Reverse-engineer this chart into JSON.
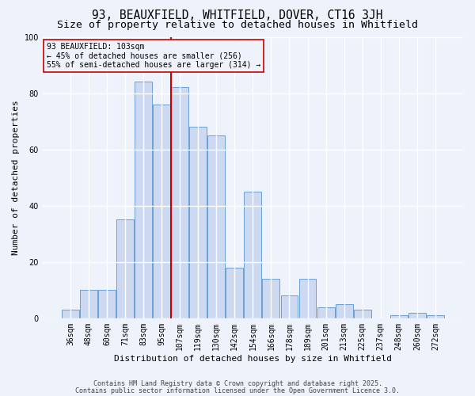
{
  "title1": "93, BEAUXFIELD, WHITFIELD, DOVER, CT16 3JH",
  "title2": "Size of property relative to detached houses in Whitfield",
  "xlabel": "Distribution of detached houses by size in Whitfield",
  "ylabel": "Number of detached properties",
  "bar_labels": [
    "36sqm",
    "48sqm",
    "60sqm",
    "71sqm",
    "83sqm",
    "95sqm",
    "107sqm",
    "119sqm",
    "130sqm",
    "142sqm",
    "154sqm",
    "166sqm",
    "178sqm",
    "189sqm",
    "201sqm",
    "213sqm",
    "225sqm",
    "237sqm",
    "248sqm",
    "260sqm",
    "272sqm"
  ],
  "bar_values": [
    3,
    10,
    10,
    35,
    84,
    76,
    82,
    68,
    65,
    18,
    45,
    14,
    8,
    14,
    4,
    5,
    3,
    0,
    1,
    2,
    1
  ],
  "bar_color": "#ccd9f0",
  "bar_edge_color": "#6b9fd4",
  "background_color": "#eef2fa",
  "grid_color": "#ffffff",
  "vline_x_index": 6,
  "vline_color": "#cc0000",
  "annotation_line1": "93 BEAUXFIELD: 103sqm",
  "annotation_line2": "← 45% of detached houses are smaller (256)",
  "annotation_line3": "55% of semi-detached houses are larger (314) →",
  "annotation_box_color": "#cc0000",
  "ylim": [
    0,
    100
  ],
  "yticks": [
    0,
    20,
    40,
    60,
    80,
    100
  ],
  "footer_line1": "Contains HM Land Registry data © Crown copyright and database right 2025.",
  "footer_line2": "Contains public sector information licensed under the Open Government Licence 3.0.",
  "title_fontsize": 10.5,
  "subtitle_fontsize": 9.5,
  "axis_label_fontsize": 8,
  "tick_fontsize": 7,
  "annot_fontsize": 7,
  "footer_fontsize": 6
}
